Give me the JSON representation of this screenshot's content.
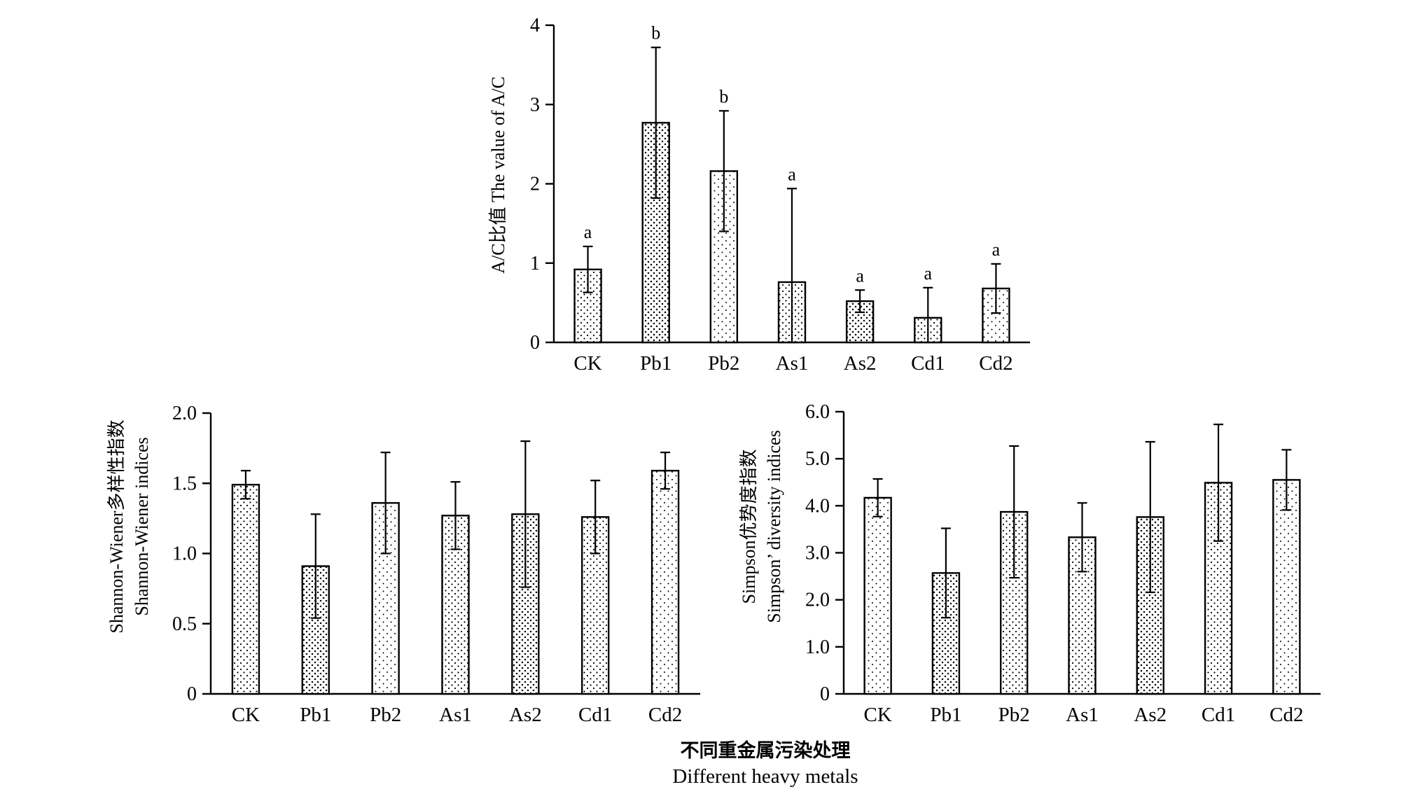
{
  "chart_data": [
    {
      "type": "bar",
      "categories": [
        "CK",
        "Pb1",
        "Pb2",
        "As1",
        "As2",
        "Cd1",
        "Cd2"
      ],
      "values": [
        0.92,
        2.77,
        2.16,
        0.76,
        0.52,
        0.31,
        0.68
      ],
      "errors": [
        0.29,
        0.95,
        0.76,
        1.18,
        0.14,
        0.38,
        0.31
      ],
      "significance": [
        "a",
        "b",
        "b",
        "a",
        "a",
        "a",
        "a"
      ],
      "ylabel": "A/C比值 The value of A/C",
      "ylim": [
        0,
        4
      ],
      "yticks": [
        "0",
        "1",
        "2",
        "3",
        "4"
      ],
      "yticks_values": [
        0,
        1,
        2,
        3,
        4
      ],
      "grid": false
    },
    {
      "type": "bar",
      "categories": [
        "CK",
        "Pb1",
        "Pb2",
        "As1",
        "As2",
        "Cd1",
        "Cd2"
      ],
      "values": [
        1.49,
        0.91,
        1.36,
        1.27,
        1.28,
        1.26,
        1.59
      ],
      "errors": [
        0.1,
        0.37,
        0.36,
        0.24,
        0.52,
        0.26,
        0.13
      ],
      "ylabel_line1": "Shannon-Wiener多样性指数",
      "ylabel_line2": "Shannon-Wiener indices",
      "ylim": [
        0,
        2.0
      ],
      "yticks": [
        "0",
        "0.5",
        "1.0",
        "1.5",
        "2.0"
      ],
      "yticks_values": [
        0,
        0.5,
        1.0,
        1.5,
        2.0
      ],
      "grid": false
    },
    {
      "type": "bar",
      "categories": [
        "CK",
        "Pb1",
        "Pb2",
        "As1",
        "As2",
        "Cd1",
        "Cd2"
      ],
      "values": [
        4.17,
        2.57,
        3.87,
        3.33,
        3.76,
        4.49,
        4.55
      ],
      "errors": [
        0.4,
        0.95,
        1.4,
        0.73,
        1.6,
        1.24,
        0.64
      ],
      "ylabel_line1": "Simpson优势度指数",
      "ylabel_line2": "Simpson’ diversity indices",
      "ylim": [
        0,
        6.0
      ],
      "yticks": [
        "0",
        "1.0",
        "2.0",
        "3.0",
        "4.0",
        "5.0",
        "6.0"
      ],
      "yticks_values": [
        0,
        1,
        2,
        3,
        4,
        5,
        6
      ],
      "grid": false
    }
  ],
  "shared_xlabel_cn": "不同重金属污染处理",
  "shared_xlabel_en": "Different heavy metals",
  "colors": {
    "ink": "#000000",
    "bar_fill": "#ffffff"
  }
}
